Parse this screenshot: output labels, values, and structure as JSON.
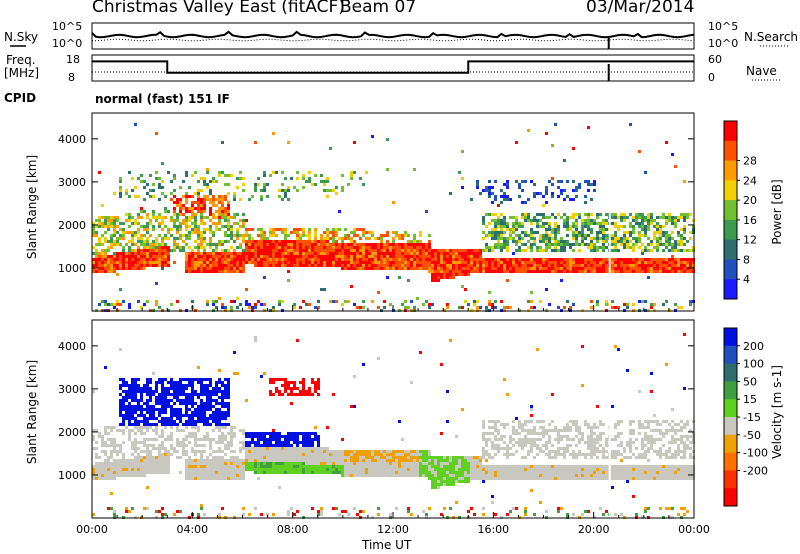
{
  "header": {
    "title": "Christmas Valley East (fitACF)",
    "beam": "Beam 07",
    "date": "03/Mar/2014"
  },
  "nsky_panel": {
    "left_label": "N.Sky",
    "right_label": "N.Search",
    "left_ticks": [
      "10^5",
      "10^0"
    ],
    "right_ticks": [
      "10^5",
      "10^0"
    ]
  },
  "freq_panel": {
    "left_label_line1": "Freq.",
    "left_label_line2": "[MHz]",
    "right_label": "Nave",
    "left_ticks": [
      "18",
      "8"
    ],
    "right_ticks": [
      "60",
      "0"
    ]
  },
  "cpid": {
    "label": "CPID",
    "value": "normal (fast) 151 IF"
  },
  "chart_data": [
    {
      "type": "heatmap",
      "name": "power",
      "ylabel": "Slant Range [km]",
      "ylim": [
        0,
        4600
      ],
      "yticks": [
        "1000",
        "2000",
        "3000",
        "4000"
      ],
      "xlim": [
        0,
        24
      ],
      "colorbar": {
        "label": "Power [dB]",
        "ticks": [
          "4",
          "8",
          "12",
          "16",
          "20",
          "24",
          "28"
        ],
        "colors": [
          "#1a1aff",
          "#2050c0",
          "#2d6e6e",
          "#3c9a50",
          "#70c030",
          "#f0d000",
          "#ff9a00",
          "#ff5000",
          "#ff0000"
        ]
      }
    },
    {
      "type": "heatmap",
      "name": "velocity",
      "ylabel": "Slant Range [km]",
      "ylim": [
        0,
        4600
      ],
      "yticks": [
        "1000",
        "2000",
        "3000",
        "4000"
      ],
      "xlim": [
        0,
        24
      ],
      "xlabel": "Time UT",
      "xticks": [
        "00:00",
        "04:00",
        "08:00",
        "12:00",
        "16:00",
        "20:00",
        "00:00"
      ],
      "colorbar": {
        "label": "Velocity [m s-1]",
        "ticks": [
          "200",
          "100",
          "50",
          "15",
          "-15",
          "-50",
          "-100",
          "-200"
        ],
        "colors": [
          "#0010e0",
          "#2050c0",
          "#2d6e6e",
          "#40a040",
          "#60d020",
          "#c8c8c0",
          "#f0a000",
          "#ff7000",
          "#ff3000",
          "#ff0000"
        ]
      }
    }
  ]
}
